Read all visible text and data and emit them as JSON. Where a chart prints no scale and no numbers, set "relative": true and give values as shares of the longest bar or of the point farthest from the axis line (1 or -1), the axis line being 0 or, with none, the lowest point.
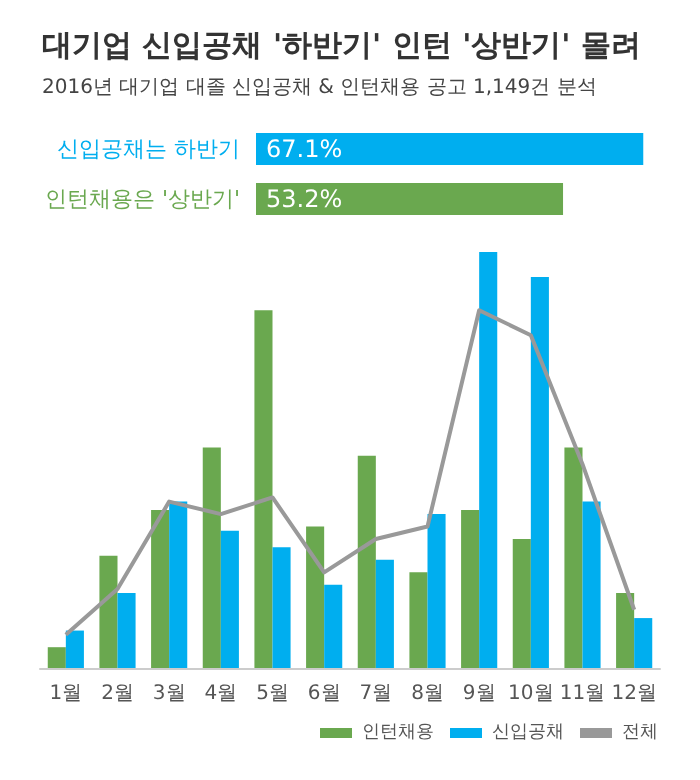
{
  "chart_data": [
    {
      "type": "bar",
      "orientation": "horizontal",
      "title": "대기업 신입공채 '하반기' 인턴 '상반기' 몰려",
      "subtitle": "2016년 대기업 대졸 신입공채 & 인턴채용 공고 1,149건 분석",
      "categories": [
        "신입공채는 하반기",
        "인턴채용은 '상반기'"
      ],
      "values": [
        67.1,
        53.2
      ],
      "colors": [
        "#00aeef",
        "#6aa84f"
      ],
      "value_labels": [
        "67.1%",
        "53.2%"
      ],
      "tick_labels": "y"
    },
    {
      "type": "bar",
      "relative": true,
      "categories": [
        "1월",
        "2월",
        "3월",
        "4월",
        "5월",
        "6월",
        "7월",
        "8월",
        "9월",
        "10월",
        "11월",
        "12월"
      ],
      "legend": "bottom right",
      "grid": false,
      "series": [
        {
          "name": "인턴채용",
          "color": "#6aa84f",
          "values": [
            0.05,
            0.27,
            0.38,
            0.53,
            0.86,
            0.34,
            0.51,
            0.23,
            0.38,
            0.31,
            0.53,
            0.18
          ]
        },
        {
          "name": "신입공채",
          "color": "#00aeef",
          "values": [
            0.09,
            0.18,
            0.4,
            0.33,
            0.29,
            0.2,
            0.26,
            0.37,
            1,
            0.94,
            0.4,
            0.12
          ]
        },
        {
          "name": "전체",
          "type": "line",
          "color": "#999999",
          "marker": "none",
          "values": [
            0.08,
            0.19,
            0.4,
            0.37,
            0.41,
            0.23,
            0.31,
            0.34,
            0.86,
            0.8,
            0.49,
            0.14
          ]
        }
      ]
    }
  ]
}
